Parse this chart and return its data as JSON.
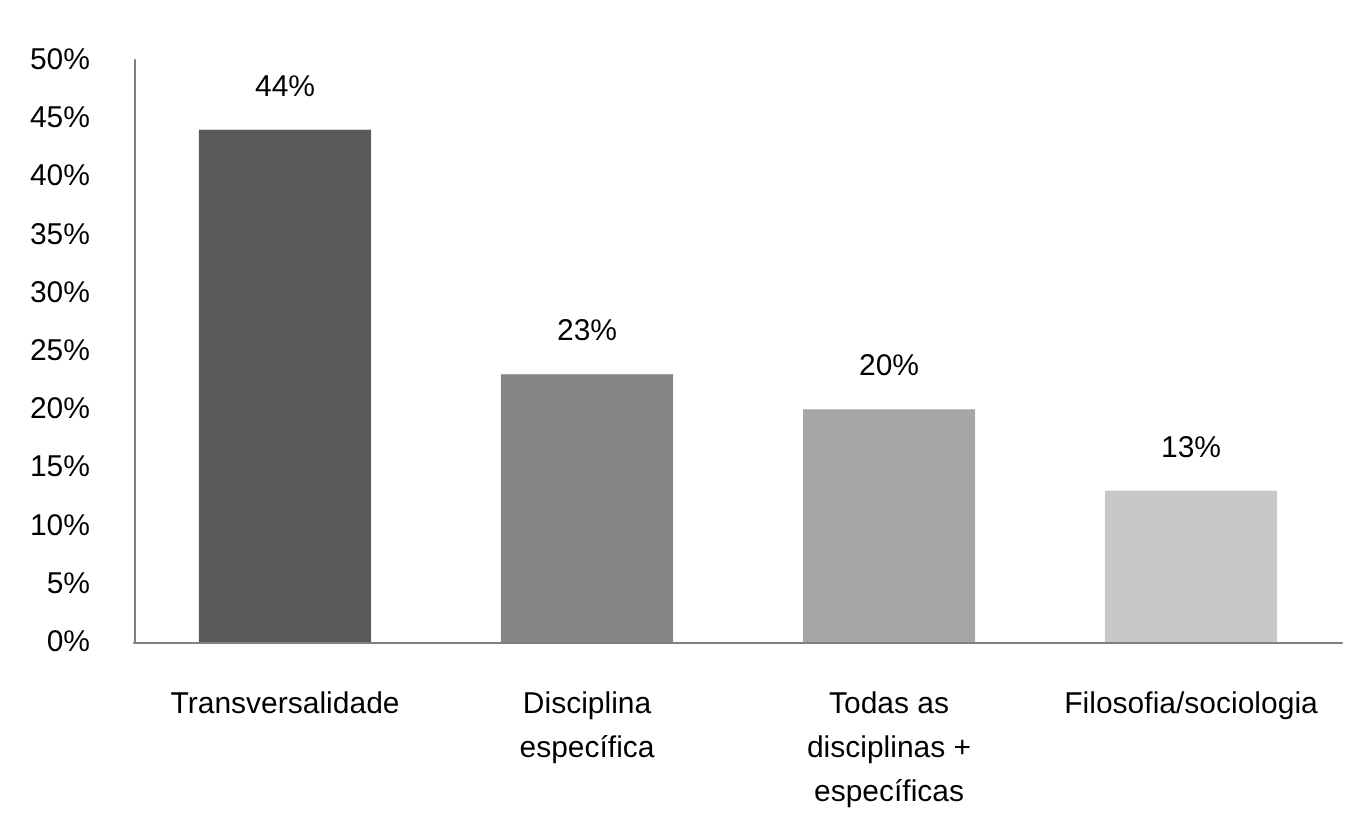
{
  "chart_data": {
    "type": "bar",
    "categories": [
      "Transversalidade",
      "Disciplina\nespecífica",
      "Todas as\ndisciplinas +\nespecíficas",
      "Filosofia/sociologia"
    ],
    "values": [
      44,
      23,
      20,
      13
    ],
    "colors": [
      "#595959",
      "#858585",
      "#a6a6a6",
      "#c8c8c8"
    ],
    "value_labels": [
      "44%",
      "23%",
      "20%",
      "13%"
    ],
    "ylim": [
      0,
      50
    ],
    "yticks": [
      {
        "value": 0,
        "label": "0%"
      },
      {
        "value": 5,
        "label": "5%"
      },
      {
        "value": 10,
        "label": "10%"
      },
      {
        "value": 15,
        "label": "15%"
      },
      {
        "value": 20,
        "label": "20%"
      },
      {
        "value": 25,
        "label": "25%"
      },
      {
        "value": 30,
        "label": "30%"
      },
      {
        "value": 35,
        "label": "35%"
      },
      {
        "value": 40,
        "label": "40%"
      },
      {
        "value": 45,
        "label": "45%"
      },
      {
        "value": 50,
        "label": "50%"
      }
    ],
    "grid": false
  }
}
